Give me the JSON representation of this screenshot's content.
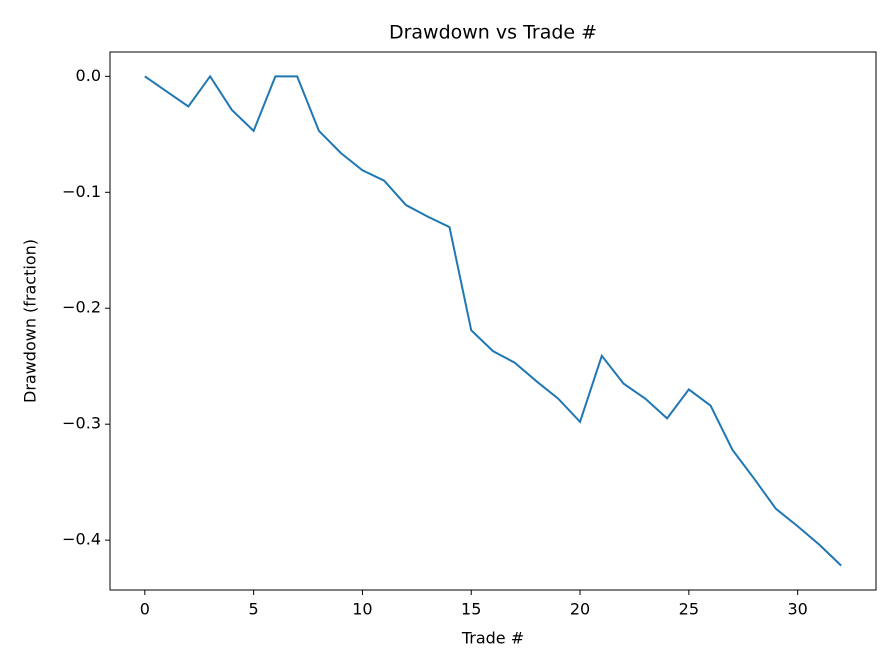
{
  "chart_data": {
    "type": "line",
    "title": "Drawdown vs Trade #",
    "x_label": "Trade #",
    "y_label": "Drawdown (fraction)",
    "x": [
      0,
      1,
      2,
      3,
      4,
      5,
      6,
      7,
      8,
      9,
      10,
      11,
      12,
      13,
      14,
      15,
      16,
      17,
      18,
      19,
      20,
      21,
      22,
      23,
      24,
      25,
      26,
      27,
      28,
      29,
      30,
      31,
      32
    ],
    "series": [
      {
        "name": "Drawdown",
        "color": "#1f77b4",
        "values": [
          0,
          -0.013,
          -0.026,
          0,
          -0.029,
          -0.047,
          0,
          0,
          -0.047,
          -0.066,
          -0.081,
          -0.09,
          -0.111,
          -0.121,
          -0.13,
          -0.219,
          -0.237,
          -0.247,
          -0.263,
          -0.278,
          -0.298,
          -0.241,
          -0.265,
          -0.278,
          -0.295,
          -0.27,
          -0.284,
          -0.322,
          -0.347,
          -0.373,
          -0.388,
          -0.404,
          -0.422
        ]
      }
    ],
    "xlim": [
      -1.6,
      33.6
    ],
    "ylim": [
      -0.443,
      0.021
    ],
    "xticks": [
      0,
      5,
      10,
      15,
      20,
      25,
      30
    ],
    "yticks": [
      {
        "value": 0,
        "label": "0.0"
      },
      {
        "value": -0.1,
        "label": "−0.1"
      },
      {
        "value": -0.2,
        "label": "−0.2"
      },
      {
        "value": -0.3,
        "label": "−0.3"
      },
      {
        "value": -0.4,
        "label": "−0.4"
      }
    ]
  }
}
